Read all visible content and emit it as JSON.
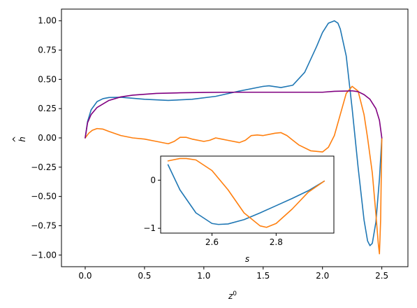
{
  "chart_data": [
    {
      "type": "line",
      "title": "",
      "xlabel": "z",
      "xlabel_superscript": "0",
      "ylabel": "h",
      "ylabel_accent": "^",
      "xlim": [
        -0.2,
        2.72
      ],
      "ylim": [
        -1.1,
        1.1
      ],
      "xticks": [
        0.0,
        0.5,
        1.0,
        1.5,
        2.0,
        2.5
      ],
      "xtick_labels": [
        "0.0",
        "0.5",
        "1.0",
        "1.5",
        "2.0",
        "2.5"
      ],
      "yticks": [
        1.0,
        0.75,
        0.5,
        0.25,
        0.0,
        -0.25,
        -0.5,
        -0.75,
        -1.0
      ],
      "ytick_labels": [
        "1.00",
        "0.75",
        "0.50",
        "0.25",
        "0.00",
        "−0.25",
        "−0.50",
        "−0.75",
        "−1.00"
      ],
      "grid": false,
      "series": [
        {
          "color": "#1f77b4",
          "x": [
            0.0,
            0.02,
            0.05,
            0.1,
            0.15,
            0.2,
            0.3,
            0.5,
            0.7,
            0.9,
            1.1,
            1.3,
            1.5,
            1.55,
            1.65,
            1.75,
            1.85,
            1.95,
            2.0,
            2.05,
            2.1,
            2.13,
            2.15,
            2.2,
            2.25,
            2.3,
            2.35,
            2.38,
            2.4,
            2.42,
            2.45,
            2.48,
            2.5
          ],
          "y": [
            0.0,
            0.14,
            0.24,
            0.31,
            0.335,
            0.345,
            0.347,
            0.33,
            0.32,
            0.33,
            0.355,
            0.4,
            0.44,
            0.445,
            0.43,
            0.45,
            0.56,
            0.78,
            0.9,
            0.98,
            1.0,
            0.98,
            0.93,
            0.7,
            0.25,
            -0.25,
            -0.7,
            -0.88,
            -0.92,
            -0.9,
            -0.72,
            -0.35,
            0.0
          ]
        },
        {
          "color": "#ff7f0e",
          "x": [
            0.0,
            0.03,
            0.06,
            0.1,
            0.15,
            0.2,
            0.3,
            0.4,
            0.5,
            0.6,
            0.7,
            0.75,
            0.8,
            0.85,
            0.9,
            1.0,
            1.05,
            1.1,
            1.15,
            1.2,
            1.3,
            1.35,
            1.4,
            1.45,
            1.5,
            1.6,
            1.65,
            1.7,
            1.75,
            1.8,
            1.9,
            2.0,
            2.05,
            2.1,
            2.15,
            2.2,
            2.25,
            2.3,
            2.35,
            2.38,
            2.42,
            2.45,
            2.47,
            2.48,
            2.49,
            2.5
          ],
          "y": [
            0.0,
            0.04,
            0.065,
            0.08,
            0.075,
            0.055,
            0.02,
            0.0,
            -0.01,
            -0.03,
            -0.05,
            -0.03,
            0.005,
            0.005,
            -0.01,
            -0.03,
            -0.02,
            0.0,
            -0.01,
            -0.02,
            -0.04,
            -0.02,
            0.02,
            0.025,
            0.02,
            0.04,
            0.045,
            0.02,
            -0.02,
            -0.06,
            -0.11,
            -0.12,
            -0.08,
            0.02,
            0.2,
            0.38,
            0.44,
            0.4,
            0.2,
            0.0,
            -0.3,
            -0.65,
            -0.9,
            -0.99,
            -0.7,
            0.0
          ]
        },
        {
          "color": "#800080",
          "x": [
            0.0,
            0.02,
            0.05,
            0.1,
            0.2,
            0.3,
            0.4,
            0.6,
            0.8,
            1.0,
            1.2,
            1.5,
            1.8,
            2.0,
            2.1,
            2.2,
            2.25,
            2.3,
            2.35,
            2.4,
            2.45,
            2.48,
            2.5
          ],
          "y": [
            0.0,
            0.13,
            0.2,
            0.26,
            0.32,
            0.35,
            0.365,
            0.38,
            0.385,
            0.388,
            0.39,
            0.39,
            0.39,
            0.39,
            0.398,
            0.4,
            0.402,
            0.395,
            0.37,
            0.33,
            0.25,
            0.15,
            0.0
          ]
        }
      ]
    },
    {
      "type": "line",
      "title": "",
      "xlabel": "s",
      "ylabel": "",
      "xlim": [
        2.44,
        2.98
      ],
      "ylim": [
        -1.1,
        0.5
      ],
      "xticks": [
        2.6,
        2.8
      ],
      "xtick_labels": [
        "2.6",
        "2.8"
      ],
      "yticks": [
        0,
        -1
      ],
      "ytick_labels": [
        "0",
        "−1"
      ],
      "grid": false,
      "series": [
        {
          "color": "#1f77b4",
          "x": [
            2.463,
            2.5,
            2.55,
            2.6,
            2.62,
            2.65,
            2.7,
            2.75,
            2.8,
            2.85,
            2.9,
            2.95
          ],
          "y": [
            0.32,
            -0.2,
            -0.68,
            -0.9,
            -0.92,
            -0.91,
            -0.82,
            -0.68,
            -0.53,
            -0.38,
            -0.22,
            -0.02
          ]
        },
        {
          "color": "#ff7f0e",
          "x": [
            2.463,
            2.5,
            2.52,
            2.55,
            2.6,
            2.65,
            2.7,
            2.75,
            2.77,
            2.8,
            2.85,
            2.9,
            2.95
          ],
          "y": [
            0.4,
            0.45,
            0.45,
            0.42,
            0.2,
            -0.2,
            -0.68,
            -0.95,
            -0.98,
            -0.9,
            -0.6,
            -0.25,
            -0.02
          ]
        }
      ]
    }
  ]
}
